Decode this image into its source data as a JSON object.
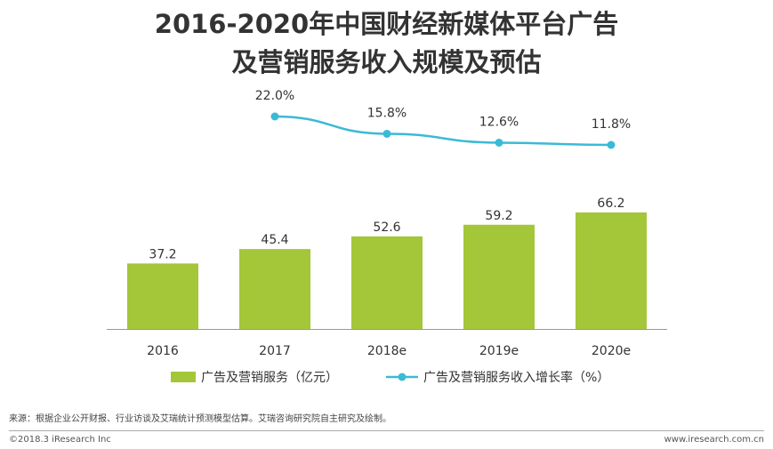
{
  "title_line1": "2016-2020年中国财经新媒体平台广告",
  "title_line2": "及营销服务收入规模及预估",
  "chart_data": {
    "type": "bar",
    "categories": [
      "2016",
      "2017",
      "2018e",
      "2019e",
      "2020e"
    ],
    "series": [
      {
        "name": "广告及营销服务（亿元）",
        "type": "bar",
        "color": "#a4c639",
        "values": [
          37.2,
          45.4,
          52.6,
          59.2,
          66.2
        ],
        "labels": [
          "37.2",
          "45.4",
          "52.6",
          "59.2",
          "66.2"
        ]
      },
      {
        "name": "广告及营销服务收入增长率（%）",
        "type": "line",
        "color": "#3bbad6",
        "values": [
          null,
          22.0,
          15.8,
          12.6,
          11.8
        ],
        "labels": [
          "",
          "22.0%",
          "15.8%",
          "12.6%",
          "11.8%"
        ]
      }
    ],
    "legend_position": "bottom",
    "grid": false
  },
  "source_note": "来源：根据企业公开财报、行业访谈及艾瑞统计预测模型估算。艾瑞咨询研究院自主研究及绘制。",
  "footer_left": "©2018.3 iResearch Inc",
  "footer_right": "www.iresearch.com.cn"
}
